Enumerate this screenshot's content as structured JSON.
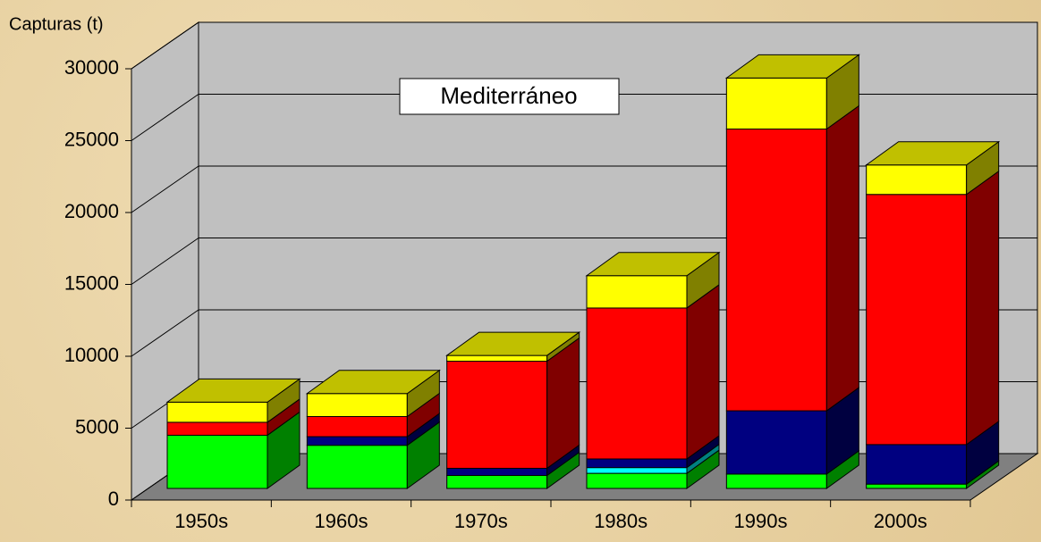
{
  "chart_data": {
    "type": "bar3d_stacked",
    "title": "Mediterráneo",
    "y_label": "Capturas (t)",
    "categories": [
      "1950s",
      "1960s",
      "1970s",
      "1980s",
      "1990s",
      "2000s"
    ],
    "series": [
      {
        "color": "#00ff00",
        "side_color": "#008000",
        "values": [
          3700,
          3000,
          900,
          1050,
          1000,
          300
        ]
      },
      {
        "color": "#00ffff",
        "side_color": "#008080",
        "values": [
          0,
          0,
          0,
          400,
          0,
          0
        ]
      },
      {
        "color": "#000080",
        "side_color": "#000040",
        "values": [
          0,
          600,
          500,
          600,
          4400,
          2750
        ]
      },
      {
        "color": "#ff0000",
        "side_color": "#800000",
        "values": [
          900,
          1400,
          7450,
          10500,
          19600,
          17400
        ]
      },
      {
        "color": "#ffff00",
        "side_color": "#808000",
        "values": [
          1400,
          1600,
          400,
          2250,
          3550,
          2050
        ]
      }
    ],
    "ylim": [
      0,
      30000
    ],
    "yticks": [
      0,
      5000,
      10000,
      15000,
      20000,
      25000,
      30000
    ],
    "grid": true
  }
}
